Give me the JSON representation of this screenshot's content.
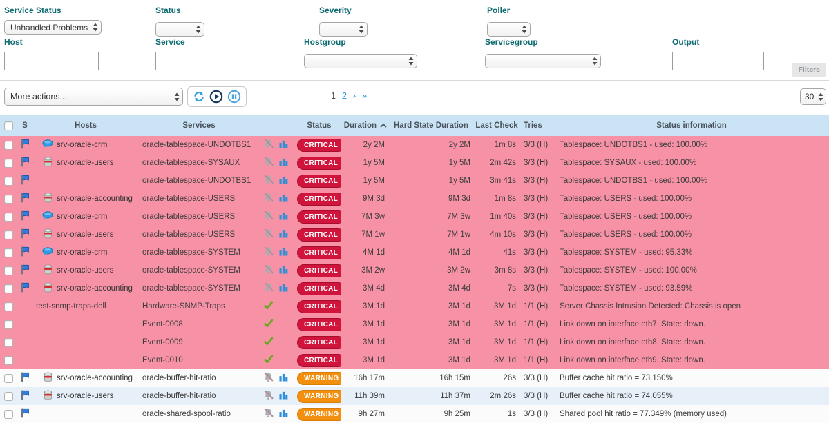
{
  "filters": {
    "service_status": {
      "label": "Service Status",
      "value": "Unhandled Problems"
    },
    "status": {
      "label": "Status",
      "value": ""
    },
    "severity": {
      "label": "Severity",
      "value": ""
    },
    "poller": {
      "label": "Poller",
      "value": ""
    },
    "host": {
      "label": "Host",
      "value": ""
    },
    "service": {
      "label": "Service",
      "value": ""
    },
    "hostgroup": {
      "label": "Hostgroup",
      "value": ""
    },
    "servicegroup": {
      "label": "Servicegroup",
      "value": ""
    },
    "output": {
      "label": "Output",
      "value": ""
    },
    "filters_button_label": "Filters"
  },
  "toolbar": {
    "more_actions_label": "More actions...",
    "page_size": "30",
    "pagination": {
      "current": "1",
      "page2": "2",
      "next_symbol": "›",
      "last_symbol": "»"
    }
  },
  "colors": {
    "critical_badge": "#d0143c",
    "warning_badge": "#f28f0e",
    "critical_row": "#f792a6",
    "header_bg": "#cbe4f5",
    "label_teal": "#0e6b72",
    "link_blue": "#2196d8"
  },
  "table": {
    "headers": {
      "s": "S",
      "hosts": "Hosts",
      "services": "Services",
      "status": "Status",
      "duration": "Duration",
      "hard_state_duration": "Hard State Duration",
      "last_check": "Last Check",
      "tries": "Tries",
      "status_information": "Status information"
    },
    "rows": [
      {
        "flag": true,
        "host_icon": "chat-bubble",
        "host": "srv-oracle-crm",
        "service": "oracle-tablespace-UNDOTBS1",
        "service_icons": [
          "bell-muted",
          "bar-chart"
        ],
        "status": "CRITICAL",
        "duration": "2y 2M",
        "hard_state_duration": "2y 2M",
        "last_check": "1m 8s",
        "tries": "3/3 (H)",
        "info": "Tablespace: UNDOTBS1 - used: 100.00%",
        "bg": "critical"
      },
      {
        "flag": true,
        "host_icon": "database",
        "host": "srv-oracle-users",
        "service": "oracle-tablespace-SYSAUX",
        "service_icons": [
          "bell-muted",
          "bar-chart"
        ],
        "status": "CRITICAL",
        "duration": "1y 5M",
        "hard_state_duration": "1y 5M",
        "last_check": "2m 42s",
        "tries": "3/3 (H)",
        "info": "Tablespace: SYSAUX - used: 100.00%",
        "bg": "critical"
      },
      {
        "flag": true,
        "host_icon": null,
        "host": "",
        "service": "oracle-tablespace-UNDOTBS1",
        "service_icons": [
          "bell-muted",
          "bar-chart"
        ],
        "status": "CRITICAL",
        "duration": "1y 5M",
        "hard_state_duration": "1y 5M",
        "last_check": "3m 41s",
        "tries": "3/3 (H)",
        "info": "Tablespace: UNDOTBS1 - used: 100.00%",
        "bg": "critical"
      },
      {
        "flag": true,
        "host_icon": "database",
        "host": "srv-oracle-accounting",
        "service": "oracle-tablespace-USERS",
        "service_icons": [
          "bell-muted",
          "bar-chart"
        ],
        "status": "CRITICAL",
        "duration": "9M 3d",
        "hard_state_duration": "9M 3d",
        "last_check": "1m 8s",
        "tries": "3/3 (H)",
        "info": "Tablespace: USERS - used: 100.00%",
        "bg": "critical"
      },
      {
        "flag": true,
        "host_icon": "chat-bubble",
        "host": "srv-oracle-crm",
        "service": "oracle-tablespace-USERS",
        "service_icons": [
          "bell-muted",
          "bar-chart"
        ],
        "status": "CRITICAL",
        "duration": "7M 3w",
        "hard_state_duration": "7M 3w",
        "last_check": "1m 40s",
        "tries": "3/3 (H)",
        "info": "Tablespace: USERS - used: 100.00%",
        "bg": "critical"
      },
      {
        "flag": true,
        "host_icon": "database",
        "host": "srv-oracle-users",
        "service": "oracle-tablespace-USERS",
        "service_icons": [
          "bell-muted",
          "bar-chart"
        ],
        "status": "CRITICAL",
        "duration": "7M 1w",
        "hard_state_duration": "7M 1w",
        "last_check": "4m 10s",
        "tries": "3/3 (H)",
        "info": "Tablespace: USERS - used: 100.00%",
        "bg": "critical"
      },
      {
        "flag": true,
        "host_icon": "chat-bubble",
        "host": "srv-oracle-crm",
        "service": "oracle-tablespace-SYSTEM",
        "service_icons": [
          "bell-muted",
          "bar-chart"
        ],
        "status": "CRITICAL",
        "duration": "4M 1d",
        "hard_state_duration": "4M 1d",
        "last_check": "41s",
        "tries": "3/3 (H)",
        "info": "Tablespace: SYSTEM - used: 95.33%",
        "bg": "critical"
      },
      {
        "flag": true,
        "host_icon": "database",
        "host": "srv-oracle-users",
        "service": "oracle-tablespace-SYSTEM",
        "service_icons": [
          "bell-muted",
          "bar-chart"
        ],
        "status": "CRITICAL",
        "duration": "3M 2w",
        "hard_state_duration": "3M 2w",
        "last_check": "3m 8s",
        "tries": "3/3 (H)",
        "info": "Tablespace: SYSTEM - used: 100.00%",
        "bg": "critical"
      },
      {
        "flag": true,
        "host_icon": "database",
        "host": "srv-oracle-accounting",
        "service": "oracle-tablespace-SYSTEM",
        "service_icons": [
          "bell-muted",
          "bar-chart"
        ],
        "status": "CRITICAL",
        "duration": "3M 4d",
        "hard_state_duration": "3M 4d",
        "last_check": "7s",
        "tries": "3/3 (H)",
        "info": "Tablespace: SYSTEM - used: 93.59%",
        "bg": "critical"
      },
      {
        "flag": false,
        "host_icon": null,
        "host": "test-snmp-traps-dell",
        "service": "Hardware-SNMP-Traps",
        "service_icons": [
          "check"
        ],
        "status": "CRITICAL",
        "duration": "3M 1d",
        "hard_state_duration": "3M 1d",
        "last_check": "3M 1d",
        "tries": "1/1 (H)",
        "info": "Server Chassis Intrusion Detected: Chassis is open",
        "bg": "critical"
      },
      {
        "flag": false,
        "host_icon": null,
        "host": "",
        "service": "Event-0008",
        "service_icons": [
          "check"
        ],
        "status": "CRITICAL",
        "duration": "3M 1d",
        "hard_state_duration": "3M 1d",
        "last_check": "3M 1d",
        "tries": "1/1 (H)",
        "info": "Link down on interface eth7. State: down.",
        "bg": "critical"
      },
      {
        "flag": false,
        "host_icon": null,
        "host": "",
        "service": "Event-0009",
        "service_icons": [
          "check"
        ],
        "status": "CRITICAL",
        "duration": "3M 1d",
        "hard_state_duration": "3M 1d",
        "last_check": "3M 1d",
        "tries": "1/1 (H)",
        "info": "Link down on interface eth8. State: down.",
        "bg": "critical"
      },
      {
        "flag": false,
        "host_icon": null,
        "host": "",
        "service": "Event-0010",
        "service_icons": [
          "check"
        ],
        "status": "CRITICAL",
        "duration": "3M 1d",
        "hard_state_duration": "3M 1d",
        "last_check": "3M 1d",
        "tries": "1/1 (H)",
        "info": "Link down on interface eth9. State: down.",
        "bg": "critical"
      },
      {
        "flag": true,
        "host_icon": "database",
        "host": "srv-oracle-accounting",
        "service": "oracle-buffer-hit-ratio",
        "service_icons": [
          "bell-muted",
          "bar-chart"
        ],
        "status": "WARNING",
        "duration": "16h 17m",
        "hard_state_duration": "16h 15m",
        "last_check": "26s",
        "tries": "3/3 (H)",
        "info": "Buffer cache hit ratio = 73.150%",
        "bg": "warn-a"
      },
      {
        "flag": true,
        "host_icon": "database",
        "host": "srv-oracle-users",
        "service": "oracle-buffer-hit-ratio",
        "service_icons": [
          "bell-muted",
          "bar-chart"
        ],
        "status": "WARNING",
        "duration": "11h 39m",
        "hard_state_duration": "11h 37m",
        "last_check": "2m 26s",
        "tries": "3/3 (H)",
        "info": "Buffer cache hit ratio = 74.055%",
        "bg": "warn-b"
      },
      {
        "flag": true,
        "host_icon": null,
        "host": "",
        "service": "oracle-shared-spool-ratio",
        "service_icons": [
          "bell-muted",
          "bar-chart"
        ],
        "status": "WARNING",
        "duration": "9h 27m",
        "hard_state_duration": "9h 25m",
        "last_check": "1s",
        "tries": "3/3 (H)",
        "info": "Shared pool hit ratio = 77.349% (memory used)",
        "bg": "warn-a"
      }
    ]
  }
}
